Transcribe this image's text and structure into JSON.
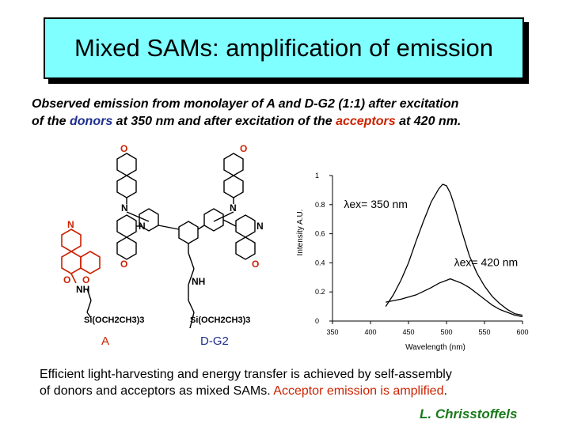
{
  "slide": {
    "title": "Mixed SAMs: amplification of emission",
    "intro": {
      "line1": "Observed emission from monolayer of A and D-G2 (1:1) after excitation",
      "line2_a": "of the ",
      "donors": "donors",
      "line2_b": " at 350 nm and after excitation of the ",
      "acceptors": "acceptors",
      "line2_c": " at 420 nm."
    },
    "structure": {
      "label_A": "A",
      "label_DG2": "D-G2",
      "silane_A": "Si(OCH2CH3)3",
      "silane_DG2": "Si(OCH2CH3)3",
      "nh_A": "NH",
      "nh_DG2": "NH",
      "n_atom": "N",
      "o_atom": "O"
    },
    "bottom": {
      "line1": "Efficient light-harvesting and energy transfer is achieved by self-assembly",
      "line2_a": "of donors and acceptors as mixed SAMs. ",
      "line2_b": "Acceptor emission is amplified",
      "line2_c": "."
    },
    "author": "L. Chrisstoffels"
  },
  "colors": {
    "title_bg": "#7fffff",
    "donor": "#1f2f8f",
    "acceptor": "#cc2200",
    "author": "#1a7a1a"
  },
  "chart_data": {
    "type": "line",
    "xlabel": "Wavelength (nm)",
    "ylabel": "Intensity A.U.",
    "xlim": [
      350,
      600
    ],
    "ylim": [
      0,
      1
    ],
    "xticks": [
      "350",
      "400",
      "450",
      "500",
      "550",
      "600"
    ],
    "yticks": [
      "0",
      "0.2",
      "0.4",
      "0.6",
      "0.8",
      "1"
    ],
    "series": [
      {
        "name": "λex= 350 nm",
        "x": [
          420,
          430,
          440,
          450,
          460,
          470,
          480,
          490,
          495,
          500,
          505,
          510,
          520,
          530,
          540,
          550,
          560,
          570,
          580,
          590,
          600
        ],
        "y": [
          0.1,
          0.18,
          0.28,
          0.4,
          0.55,
          0.69,
          0.82,
          0.91,
          0.94,
          0.93,
          0.88,
          0.8,
          0.62,
          0.45,
          0.33,
          0.24,
          0.17,
          0.12,
          0.08,
          0.05,
          0.04
        ]
      },
      {
        "name": "λex= 420 nm",
        "x": [
          420,
          440,
          460,
          480,
          490,
          500,
          505,
          510,
          520,
          530,
          540,
          550,
          560,
          570,
          580,
          590,
          600
        ],
        "y": [
          0.13,
          0.15,
          0.18,
          0.23,
          0.26,
          0.28,
          0.29,
          0.28,
          0.26,
          0.23,
          0.19,
          0.15,
          0.11,
          0.08,
          0.06,
          0.04,
          0.03
        ]
      }
    ],
    "annotations": [
      "λex= 350 nm",
      "λex= 420 nm"
    ]
  }
}
